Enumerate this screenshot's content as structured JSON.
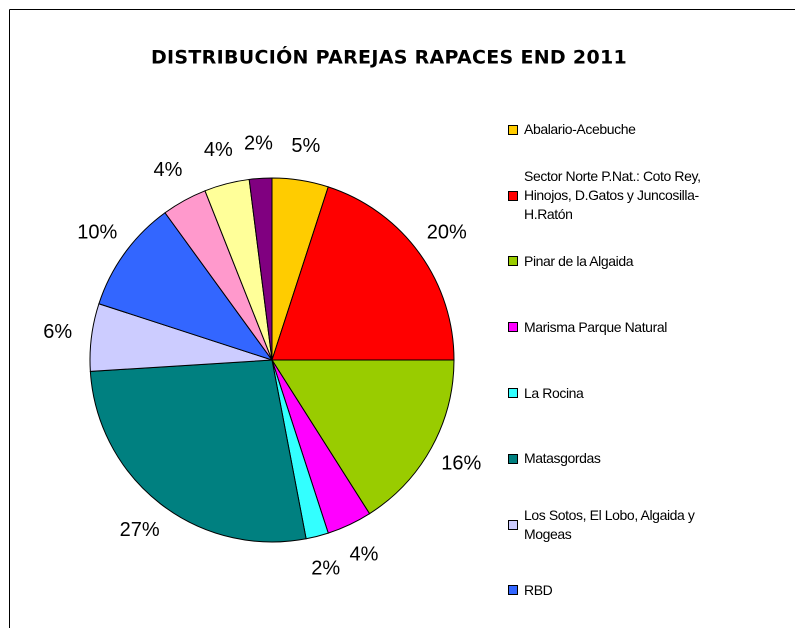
{
  "chart_data": {
    "type": "pie",
    "title": "DISTRIBUCIÓN PAREJAS RAPACES END 2011",
    "categories": [
      "Abalario-Acebuche",
      "Sector Norte P.Nat.: Coto Rey, Hinojos, D.Gatos y Juncosilla-H.Ratón",
      "Pinar de la Algaida",
      "Marisma Parque Natural",
      "La Rocina",
      "Matasgordas",
      "Los Sotos, El Lobo, Algaida y Mogeas",
      "RBD",
      null,
      null,
      null
    ],
    "values": [
      5,
      20,
      16,
      4,
      2,
      27,
      6,
      10,
      4,
      4,
      2
    ],
    "value_labels": [
      "5%",
      "20%",
      "16%",
      "4%",
      "2%",
      "27%",
      "6%",
      "10%",
      "4%",
      "4%",
      "2%"
    ],
    "colors": [
      "#FFCC00",
      "#FF0000",
      "#99CC00",
      "#FF00FF",
      "#33FFFF",
      "#008080",
      "#CCCCFF",
      "#3366FF",
      "#FF99CC",
      "#FFFF99",
      "#800080"
    ]
  }
}
